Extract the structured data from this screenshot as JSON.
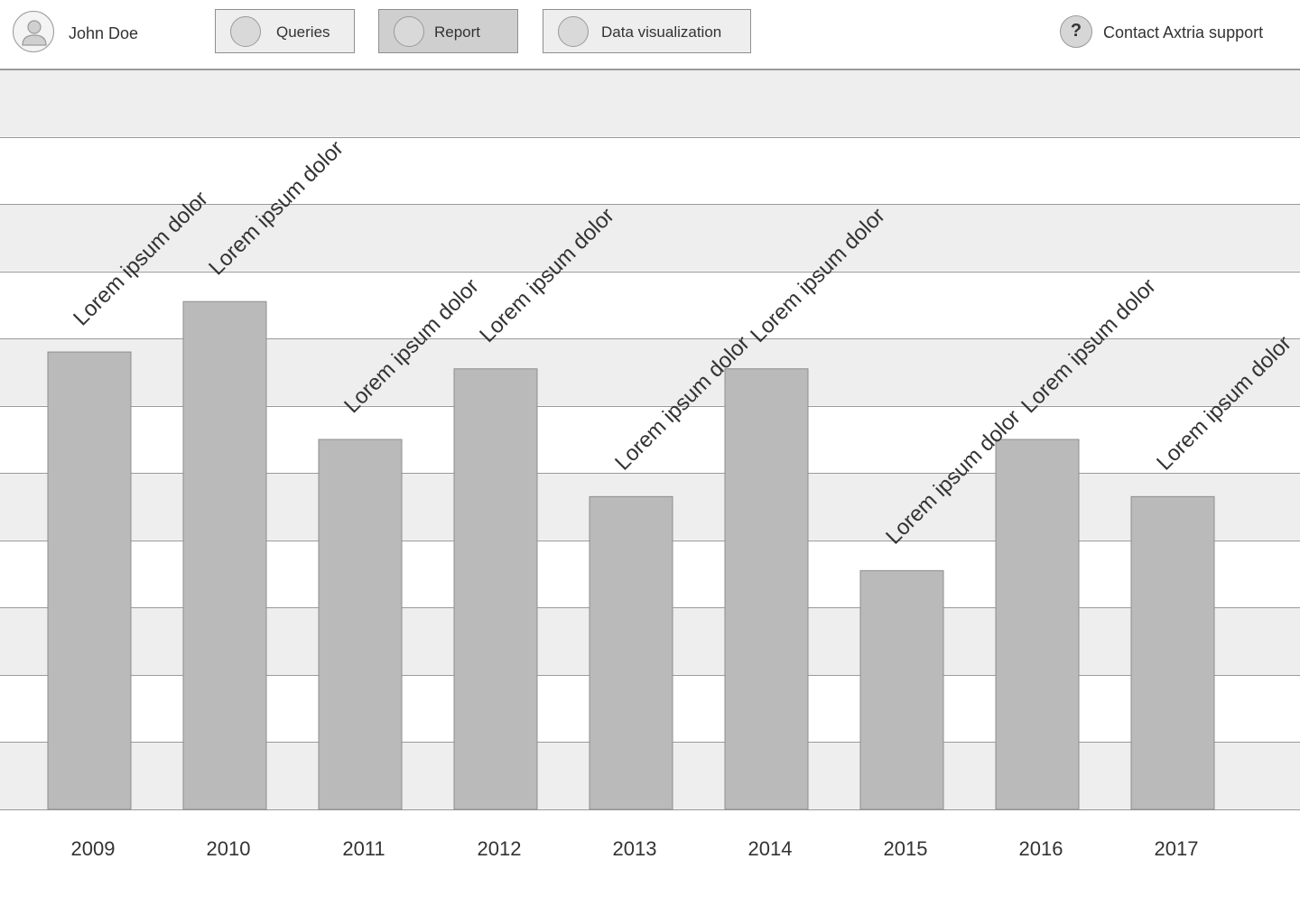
{
  "header": {
    "user_name": "John Doe",
    "nav": [
      {
        "label": "Queries",
        "active": false
      },
      {
        "label": "Report",
        "active": true
      },
      {
        "label": "Data visualization",
        "active": false
      }
    ],
    "help_glyph": "?",
    "support_label": "Contact Axtria support"
  },
  "colors": {
    "bar": "#bababa",
    "bar_border": "#8f8f8f",
    "band_shaded": "#eeeeee",
    "band_plain": "#ffffff",
    "grid_line": "#9a9a9a",
    "text": "#333333"
  },
  "chart_data": {
    "type": "bar",
    "title": "",
    "xlabel": "",
    "ylabel": "",
    "categories": [
      "2009",
      "2010",
      "2011",
      "2012",
      "2013",
      "2014",
      "2015",
      "2016",
      "2017"
    ],
    "values": [
      68,
      75.5,
      55,
      65.5,
      46.5,
      65.5,
      35.5,
      55,
      46.5
    ],
    "data_labels": [
      "Lorem ipsum dolor",
      "Lorem ipsum dolor",
      "Lorem ipsum dolor",
      "Lorem ipsum dolor",
      "Lorem ipsum dolor",
      "Lorem ipsum dolor",
      "Lorem ipsum dolor",
      "Lorem ipsum dolor",
      "Lorem ipsum dolor"
    ],
    "ylim": [
      0,
      110
    ],
    "grid": true,
    "y_tick_step": 10,
    "y_tick_labels_visible": false
  }
}
